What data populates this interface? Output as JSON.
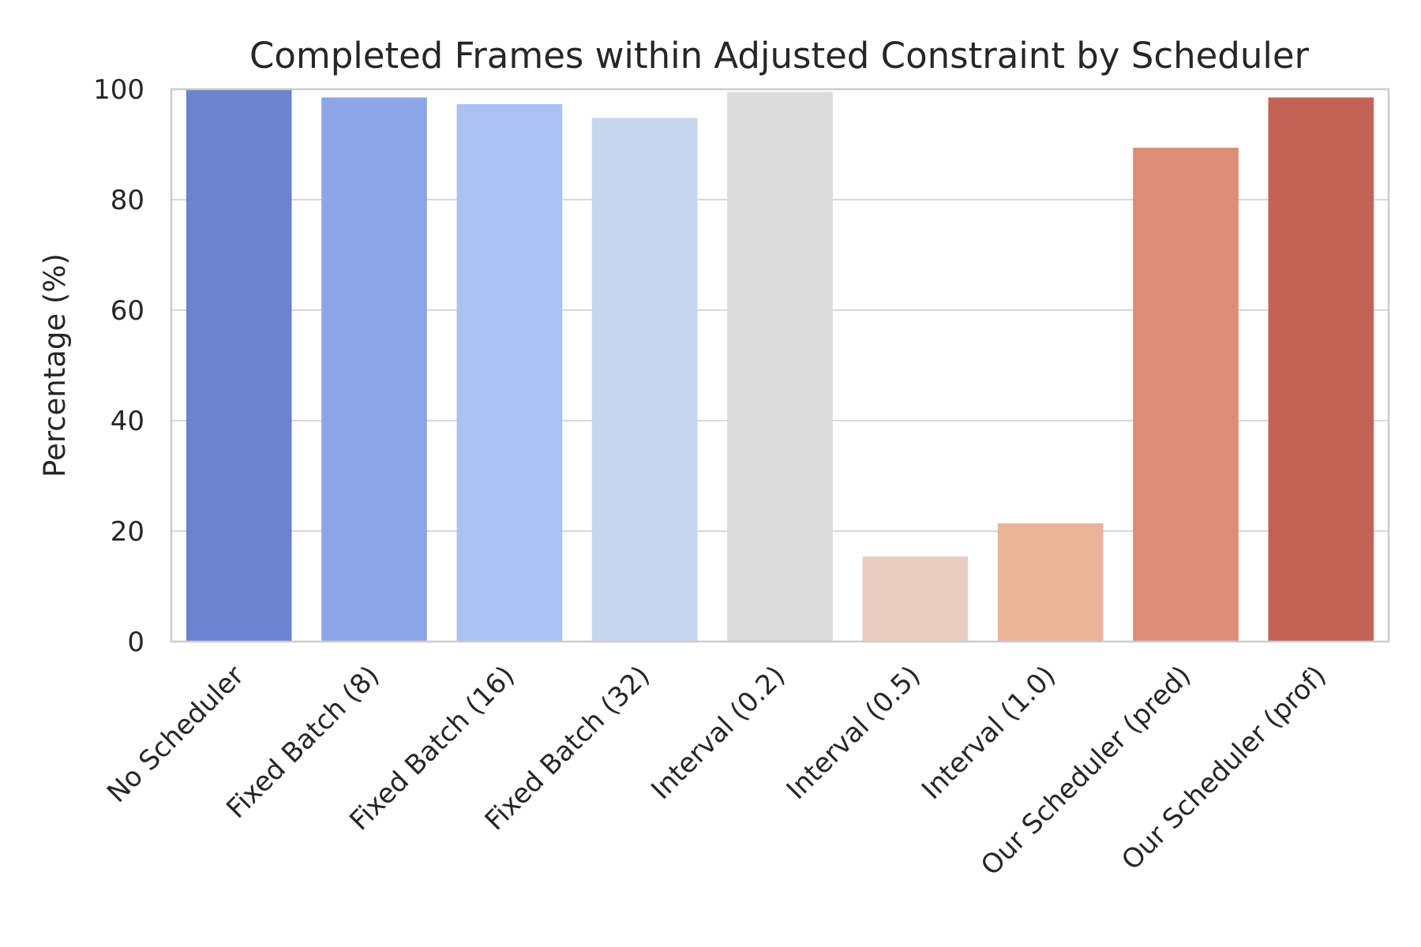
{
  "chart_data": {
    "type": "bar",
    "title": "Completed Frames within Adjusted Constraint by Scheduler",
    "xlabel": "",
    "ylabel": "Percentage (%)",
    "ylim": [
      0,
      100
    ],
    "yticks": [
      0,
      20,
      40,
      60,
      80,
      100
    ],
    "grid": "horizontal",
    "categories": [
      "No Scheduler",
      "Fixed Batch (8)",
      "Fixed Batch (16)",
      "Fixed Batch (32)",
      "Interval (0.2)",
      "Interval (0.5)",
      "Interval (1.0)",
      "Our Scheduler (pred)",
      "Our Scheduler (prof)"
    ],
    "values": [
      100,
      98.5,
      97.3,
      94.8,
      99.5,
      15.4,
      21.4,
      89.4,
      98.5
    ],
    "colors": [
      "#6b82d1",
      "#8ba5e7",
      "#abc1f3",
      "#c7d5ef",
      "#dcdcdc",
      "#eacdc0",
      "#ebb29a",
      "#dc8d77",
      "#c36356"
    ]
  }
}
